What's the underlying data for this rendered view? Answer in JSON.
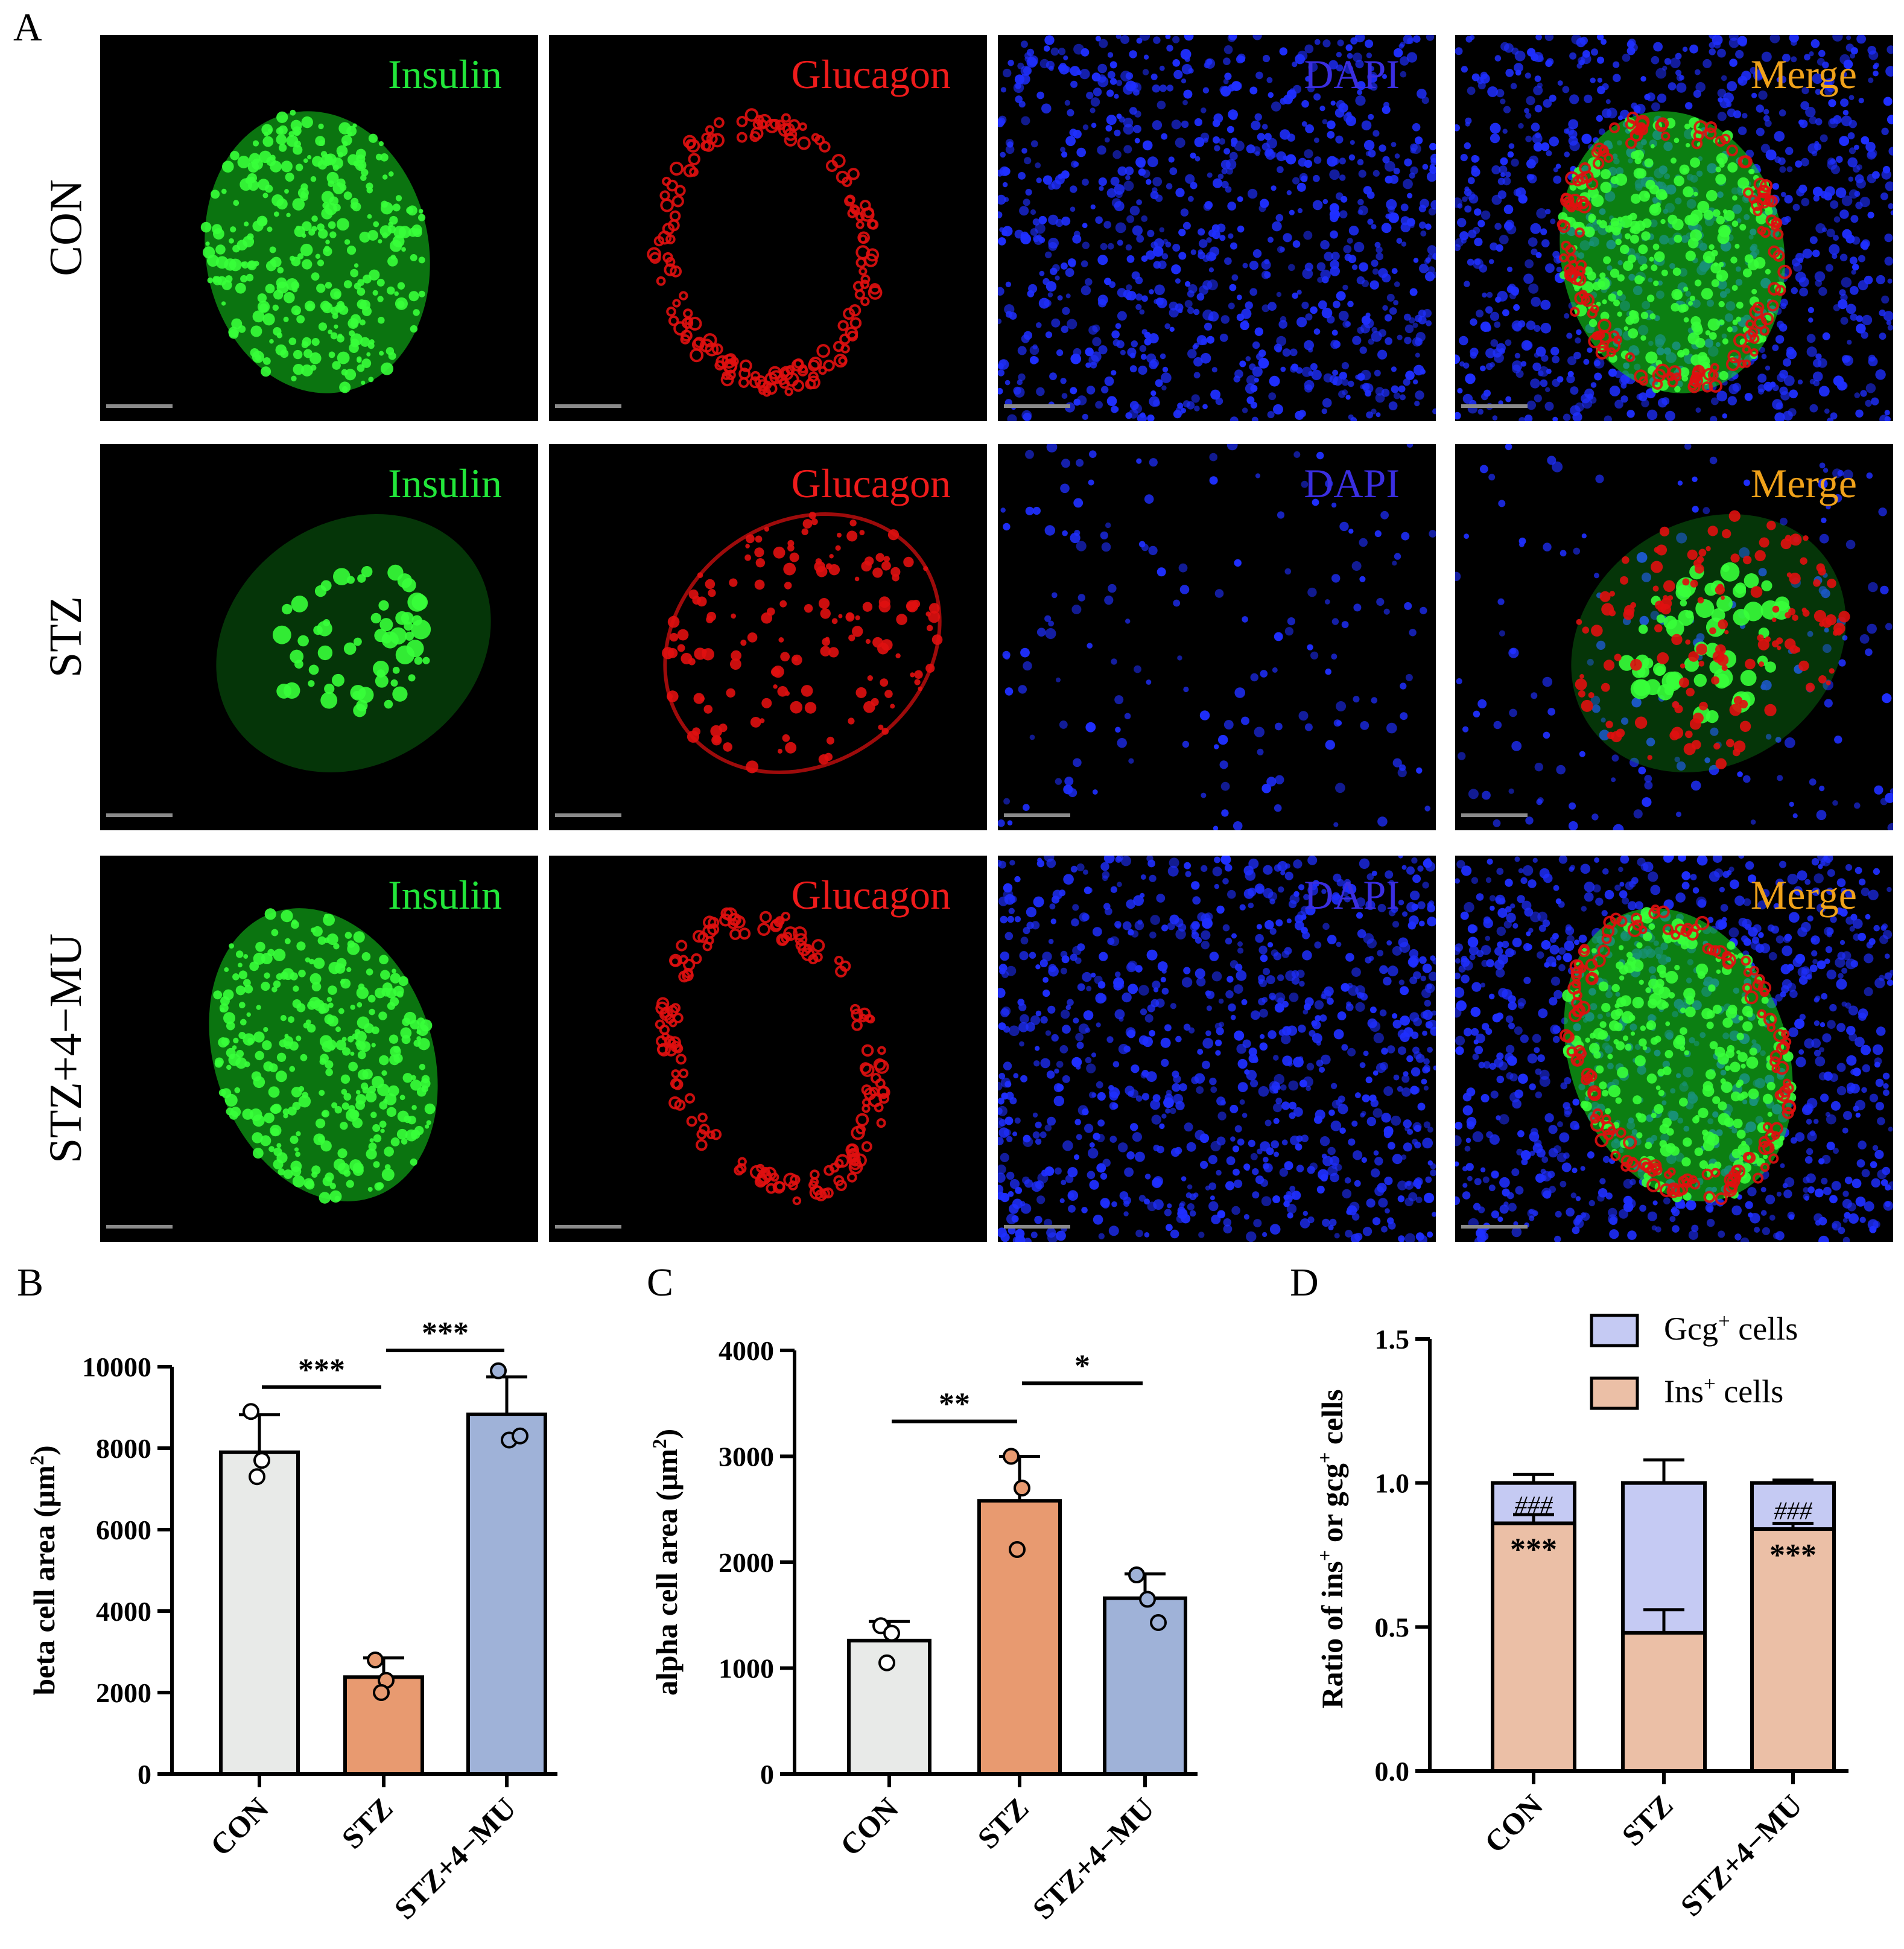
{
  "panel_labels": [
    "A",
    "B",
    "C",
    "D"
  ],
  "micrographs": {
    "rows": [
      "CON",
      "STZ",
      "STZ+4−MU"
    ],
    "columns": [
      {
        "label": "Insulin",
        "color": "#22e63a"
      },
      {
        "label": "Glucagon",
        "color": "#ee1b1b"
      },
      {
        "label": "DAPI",
        "color": "#3a2ee0"
      },
      {
        "label": "Merge",
        "color": "#f0a21a"
      }
    ],
    "colors": {
      "insulin": "#14d41e",
      "glucagon": "#e01010",
      "dapi": "#1f2fff",
      "background": "#000000"
    }
  },
  "chart_data": [
    {
      "type": "bar",
      "panel": "B",
      "categories": [
        "CON",
        "STZ",
        "STZ+4−MU"
      ],
      "values": [
        7900,
        2380,
        8830
      ],
      "errors": [
        920,
        470,
        920
      ],
      "points": [
        [
          8900,
          7700,
          7300
        ],
        [
          2800,
          2300,
          2000
        ],
        [
          9900,
          8200,
          8300
        ]
      ],
      "colors": [
        "#e8eae8",
        "#e89a70",
        "#9fb2d8"
      ],
      "ylabel": "beta cell area (μm²)",
      "ylim": [
        0,
        10000
      ],
      "yticks": [
        0,
        2000,
        4000,
        6000,
        8000,
        10000
      ],
      "significance": [
        {
          "from": 0,
          "to": 1,
          "label": "***",
          "level": 9500
        },
        {
          "from": 1,
          "to": 2,
          "label": "***",
          "level": 10400
        }
      ]
    },
    {
      "type": "bar",
      "panel": "C",
      "categories": [
        "CON",
        "STZ",
        "STZ+4−MU"
      ],
      "values": [
        1260,
        2580,
        1660
      ],
      "errors": [
        180,
        420,
        230
      ],
      "points": [
        [
          1400,
          1330,
          1050
        ],
        [
          3000,
          2700,
          2120
        ],
        [
          1880,
          1650,
          1430
        ]
      ],
      "colors": [
        "#e8eae8",
        "#e89a70",
        "#9fb2d8"
      ],
      "ylabel": "alpha cell area (μm²)",
      "ylim": [
        0,
        4000
      ],
      "yticks": [
        0,
        1000,
        2000,
        3000,
        4000
      ],
      "significance": [
        {
          "from": 0,
          "to": 1,
          "label": "**",
          "level": 3330
        },
        {
          "from": 1,
          "to": 2,
          "label": "*",
          "level": 3690
        }
      ]
    },
    {
      "type": "bar",
      "panel": "D",
      "stacked": true,
      "categories": [
        "CON",
        "STZ",
        "STZ+4−MU"
      ],
      "series": [
        {
          "name": "Ins⁺ cells",
          "values": [
            0.86,
            0.48,
            0.84
          ],
          "errors": [
            0.03,
            0.08,
            0.02
          ],
          "color": "#ebbfa6"
        },
        {
          "name": "Gcg⁺ cells",
          "values": [
            0.14,
            0.52,
            0.16
          ],
          "errors": [
            0.03,
            0.08,
            0.01
          ],
          "color": "#c5caf3"
        }
      ],
      "ylabel": "Ratio of ins⁺ or gcg⁺ cells",
      "ylim": [
        0,
        1.5
      ],
      "yticks": [
        "0.0",
        "0.5",
        "1.0",
        "1.5"
      ],
      "legend_position": "top-right",
      "annotations": [
        {
          "category": 0,
          "text": "###",
          "series": "Gcg⁺ cells"
        },
        {
          "category": 0,
          "text": "***",
          "series": "Ins⁺ cells"
        },
        {
          "category": 2,
          "text": "###",
          "series": "Gcg⁺ cells"
        },
        {
          "category": 2,
          "text": "***",
          "series": "Ins⁺ cells"
        }
      ]
    }
  ]
}
